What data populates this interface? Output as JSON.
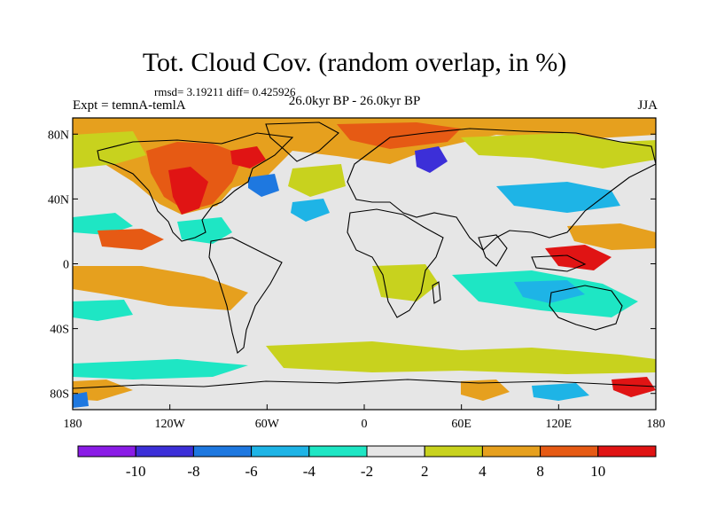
{
  "header": {
    "title": "Tot. Cloud Cov. (random overlap, in %)",
    "stats": "rmsd= 3.19211 diff= 0.425926",
    "experiment": "Expt = temnA-temlA",
    "period": "26.0kyr BP - 26.0kyr BP",
    "season": "JJA"
  },
  "map": {
    "lon_range": [
      -180,
      180
    ],
    "lat_range": [
      -90,
      90
    ],
    "lat_ticks": [
      {
        "value": 80,
        "label": "80N"
      },
      {
        "value": 40,
        "label": "40N"
      },
      {
        "value": 0,
        "label": "0"
      },
      {
        "value": -40,
        "label": "40S"
      },
      {
        "value": -80,
        "label": "80S"
      }
    ],
    "lon_ticks": [
      {
        "value": -180,
        "label": "180"
      },
      {
        "value": -120,
        "label": "120W"
      },
      {
        "value": -60,
        "label": "60W"
      },
      {
        "value": 0,
        "label": "0"
      },
      {
        "value": 60,
        "label": "60E"
      },
      {
        "value": 120,
        "label": "120E"
      },
      {
        "value": 180,
        "label": "180"
      }
    ],
    "background_color": "#e6e6e6",
    "coastline_color": "#000000"
  },
  "colorbar": {
    "levels": [
      "-10",
      "-8",
      "-6",
      "-4",
      "-2",
      "2",
      "4",
      "8",
      "10"
    ],
    "colors": [
      "#8a1ce6",
      "#3c2fd8",
      "#1e78e0",
      "#1eb4e6",
      "#1ee6c4",
      "#e6e6e6",
      "#c8d21e",
      "#e6a01e",
      "#e65a14",
      "#e01414"
    ]
  }
}
